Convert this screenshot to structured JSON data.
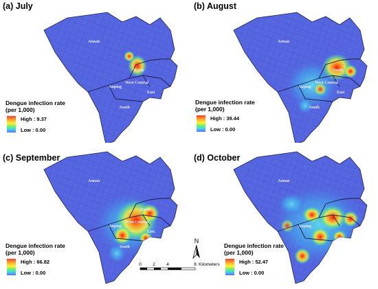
{
  "panels": [
    {
      "id": "a",
      "title": "(a) July",
      "legend": {
        "title_line1": "Dengue infection rate",
        "title_line2": "(per 1,000)",
        "high": "High : 9.37",
        "low": "Low : 0.00"
      }
    },
    {
      "id": "b",
      "title": "(b) August",
      "legend": {
        "title_line1": "Dengue infection rate",
        "title_line2": "(per 1,000)",
        "high": "High : 39.44",
        "low": "Low : 0.00"
      }
    },
    {
      "id": "c",
      "title": "(c) September",
      "legend": {
        "title_line1": "Dengue infection rate",
        "title_line2": "(per 1,000)",
        "high": "High : 66.82",
        "low": "Low : 0.00"
      }
    },
    {
      "id": "d",
      "title": "(d) October",
      "legend": {
        "title_line1": "Dengue infection rate",
        "title_line2": "(per 1,000)",
        "high": "High : 52.47",
        "low": "Low : 0.00"
      }
    }
  ],
  "district_labels": {
    "annan": "Annan",
    "north": "North",
    "west_central": "West Central",
    "anping": "Anping",
    "east": "East",
    "south": "South"
  },
  "north_arrow": {
    "letter": "N"
  },
  "scale_bar": {
    "ticks": [
      "0",
      "2",
      "4",
      "8"
    ],
    "unit": "Kilometers"
  },
  "colors": {
    "base_fill": "#5566e0",
    "boundary": "#222244",
    "hot": "#ff2a1a",
    "warm": "#ffd030",
    "mild": "#6cf060",
    "cool": "#40c8f0"
  }
}
